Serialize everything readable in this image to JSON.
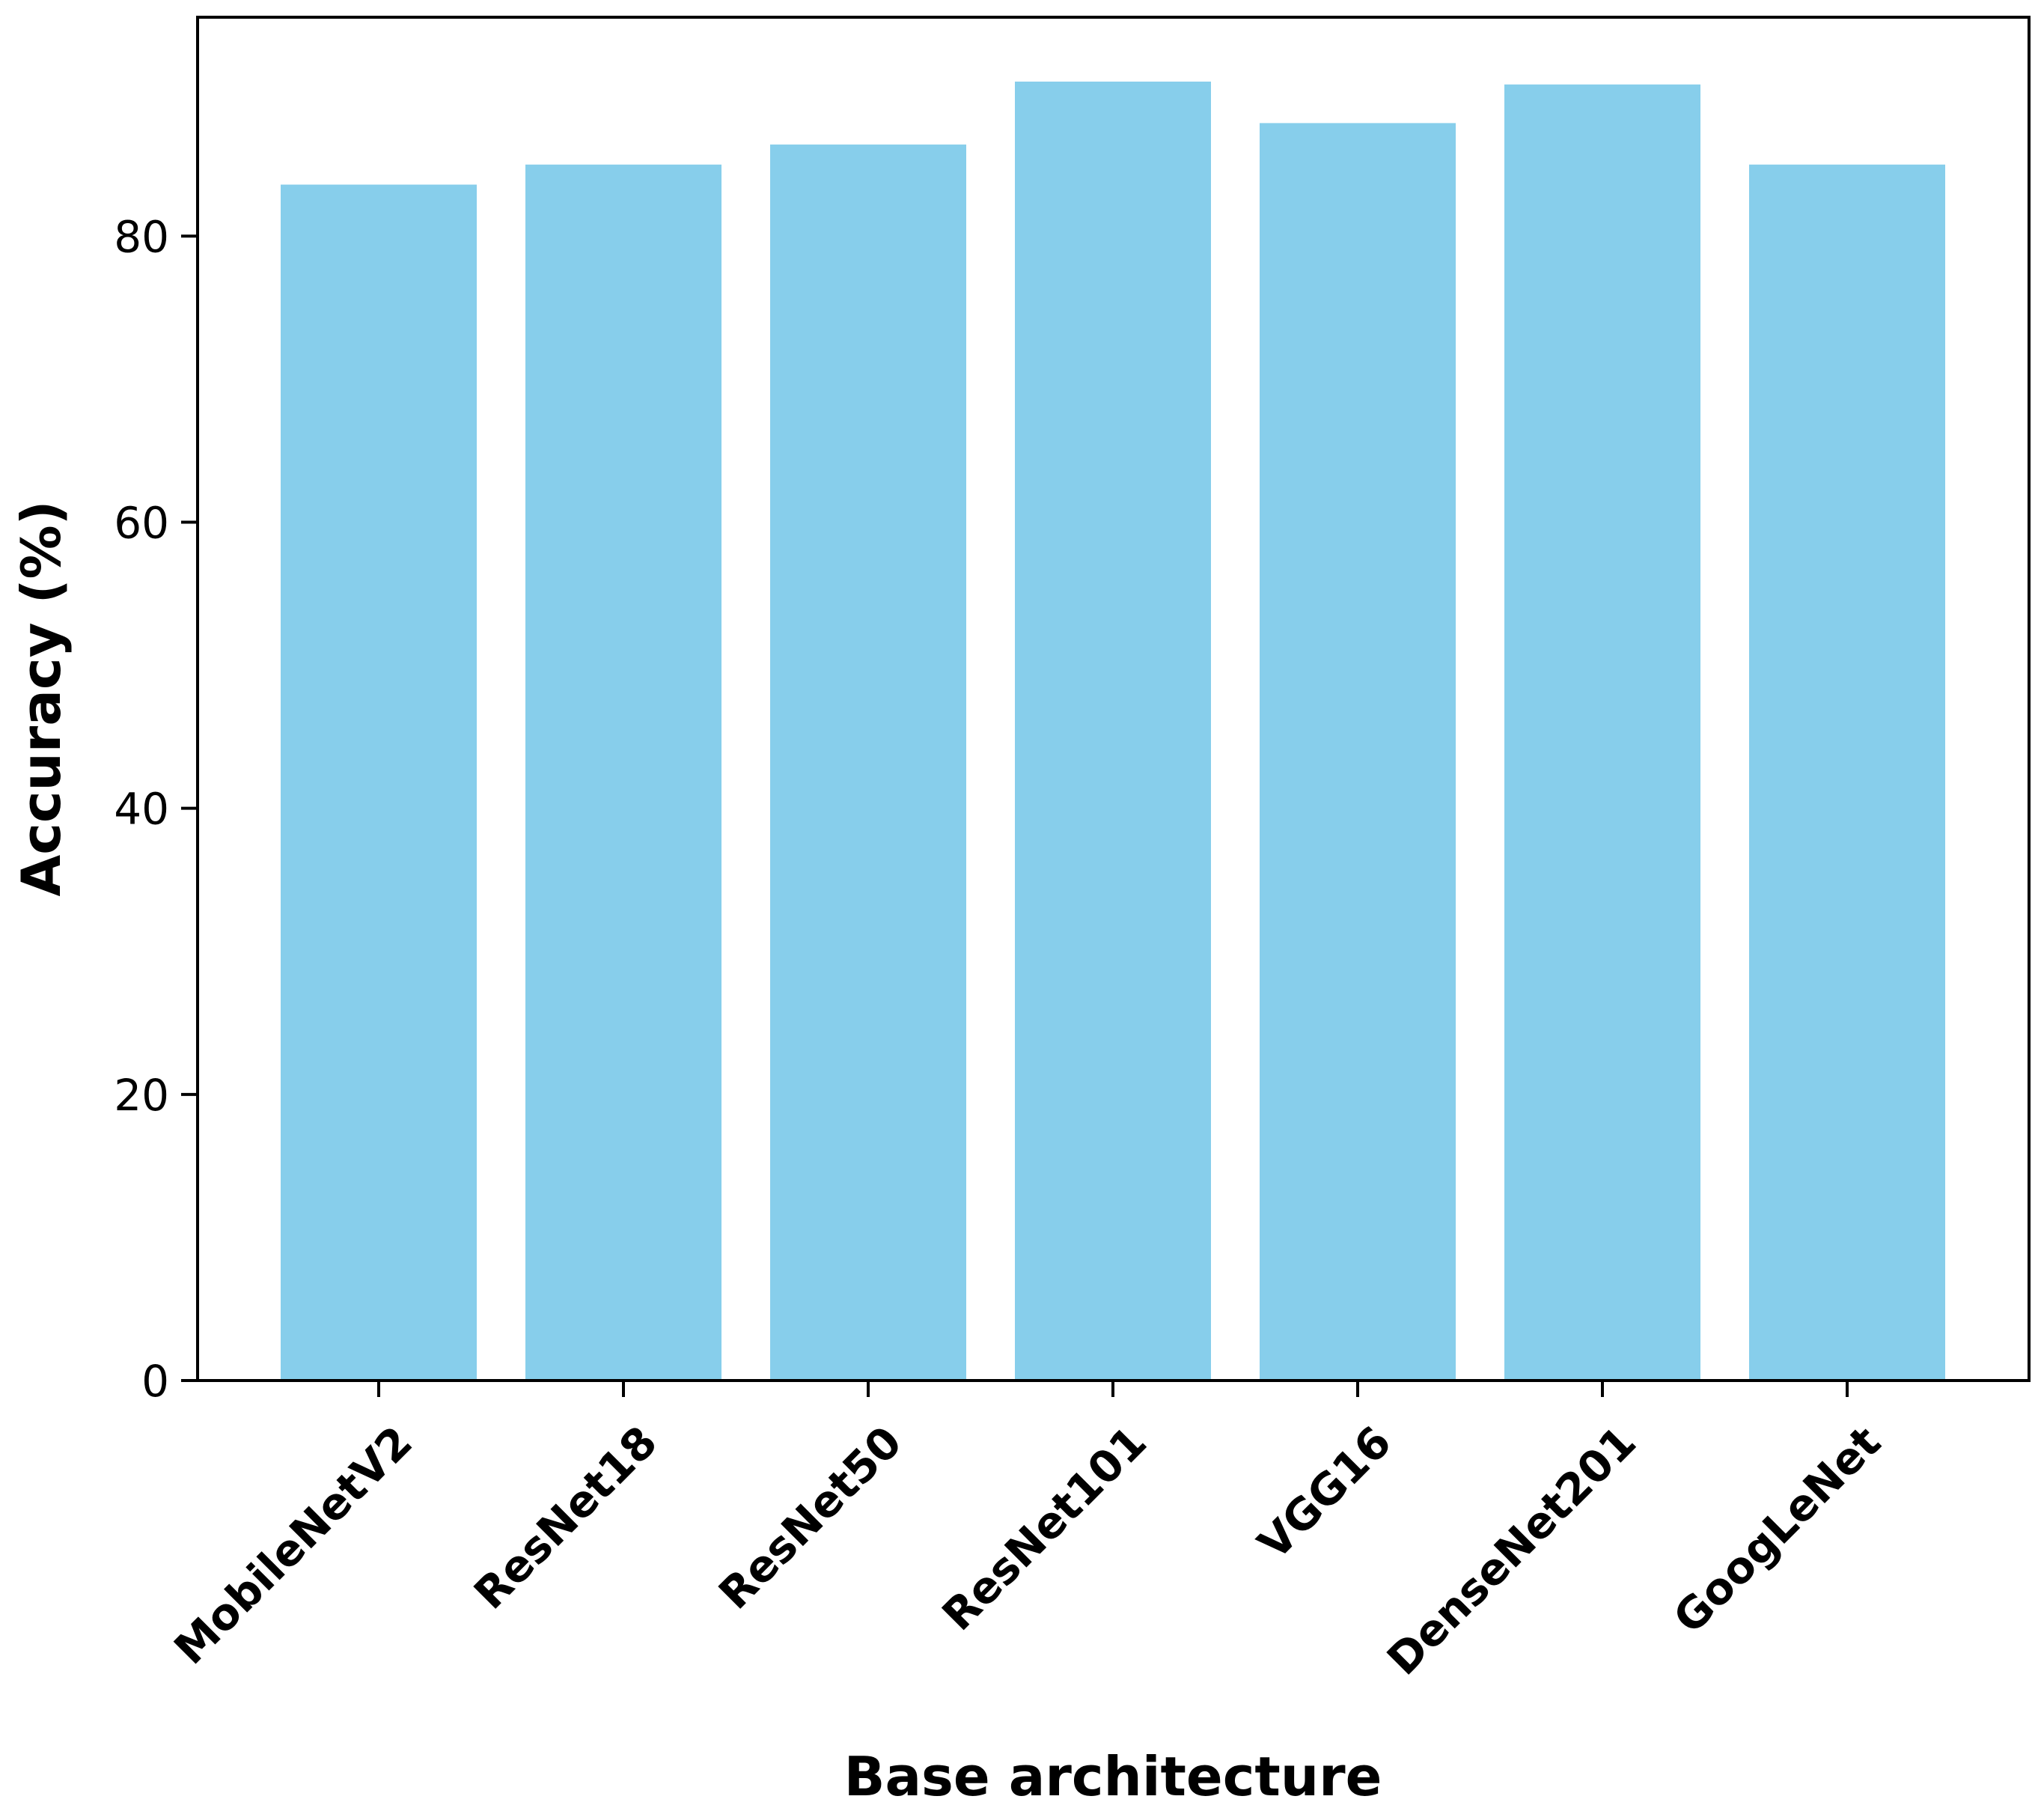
{
  "chart_data": {
    "type": "bar",
    "categories": [
      "MobileNetV2",
      "ResNet18",
      "ResNet50",
      "ResNet101",
      "VGG16",
      "DenseNet201",
      "GoogLeNet"
    ],
    "values": [
      83.6,
      85.0,
      86.4,
      90.8,
      87.9,
      90.6,
      85.0
    ],
    "title": "",
    "xlabel": "Base architecture",
    "ylabel": "Accuracy (%)",
    "ylim": [
      0,
      95.3
    ],
    "yticks": [
      0,
      20,
      40,
      60,
      80
    ],
    "bar_color": "#87CEEB",
    "grid": false,
    "legend": "none"
  }
}
